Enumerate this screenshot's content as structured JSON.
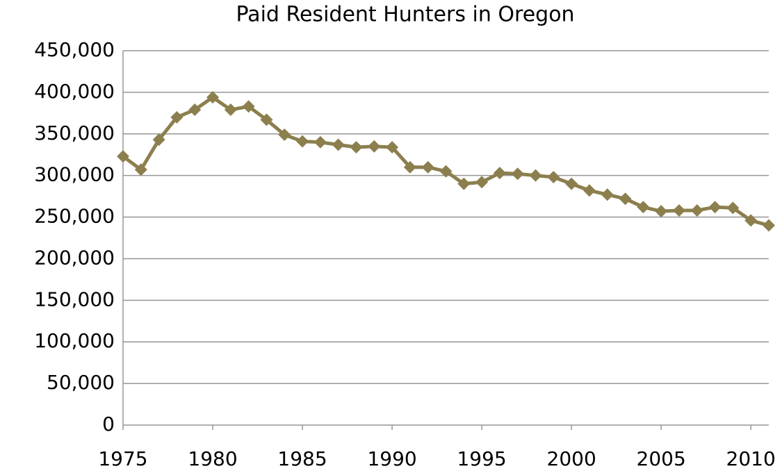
{
  "chart_data": {
    "type": "line",
    "title": "Paid Resident Hunters in Oregon",
    "x": [
      1975,
      1976,
      1977,
      1978,
      1979,
      1980,
      1981,
      1982,
      1983,
      1984,
      1985,
      1986,
      1987,
      1988,
      1989,
      1990,
      1991,
      1992,
      1993,
      1994,
      1995,
      1996,
      1997,
      1998,
      1999,
      2000,
      2001,
      2002,
      2003,
      2004,
      2005,
      2006,
      2007,
      2008,
      2009,
      2010,
      2011
    ],
    "series": [
      {
        "name": "Paid Resident Hunters",
        "color": "#8c7f4e",
        "values": [
          323000,
          307000,
          343000,
          370000,
          379000,
          394000,
          379000,
          383000,
          367000,
          349000,
          341000,
          340000,
          337000,
          334000,
          335000,
          334000,
          310000,
          310000,
          305000,
          290000,
          292000,
          303000,
          302000,
          300000,
          298000,
          290000,
          282000,
          277000,
          272000,
          262000,
          257000,
          258000,
          258000,
          262000,
          261000,
          246000,
          240000
        ]
      }
    ],
    "xlim": [
      1975,
      2011
    ],
    "xticks": [
      1975,
      1980,
      1985,
      1990,
      1995,
      2000,
      2005,
      2010
    ],
    "ylim": [
      0,
      450000
    ],
    "yticks": [
      0,
      {
        "value": 50000,
        "label": "50,000"
      },
      {
        "value": 100000,
        "label": "100,000"
      },
      {
        "value": 150000,
        "label": "150,000"
      },
      {
        "value": 200000,
        "label": "200,000"
      },
      {
        "value": 250000,
        "label": "250,000"
      },
      {
        "value": 300000,
        "label": "300,000"
      },
      {
        "value": 350000,
        "label": "350,000"
      },
      {
        "value": 400000,
        "label": "400,000"
      },
      {
        "value": 450000,
        "label": "450,000"
      }
    ],
    "grid": true
  }
}
